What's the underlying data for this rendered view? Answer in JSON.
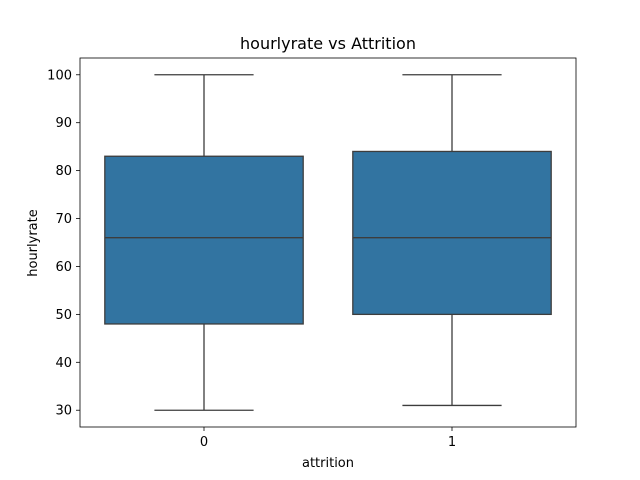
{
  "chart_data": {
    "type": "box",
    "title": "hourlyrate vs Attrition",
    "xlabel": "attrition",
    "ylabel": "hourlyrate",
    "categories": [
      "0",
      "1"
    ],
    "ylim": [
      26.5,
      103.5
    ],
    "yticks": [
      30,
      40,
      50,
      60,
      70,
      80,
      90,
      100
    ],
    "boxes": [
      {
        "category": "0",
        "min": 30,
        "q1": 48,
        "median": 66,
        "q3": 83,
        "max": 100
      },
      {
        "category": "1",
        "min": 31,
        "q1": 50,
        "median": 66,
        "q3": 84,
        "max": 100
      }
    ],
    "box_color": "#3274a1",
    "line_color": "#3d3d3d",
    "grid": false,
    "legend": "none"
  }
}
